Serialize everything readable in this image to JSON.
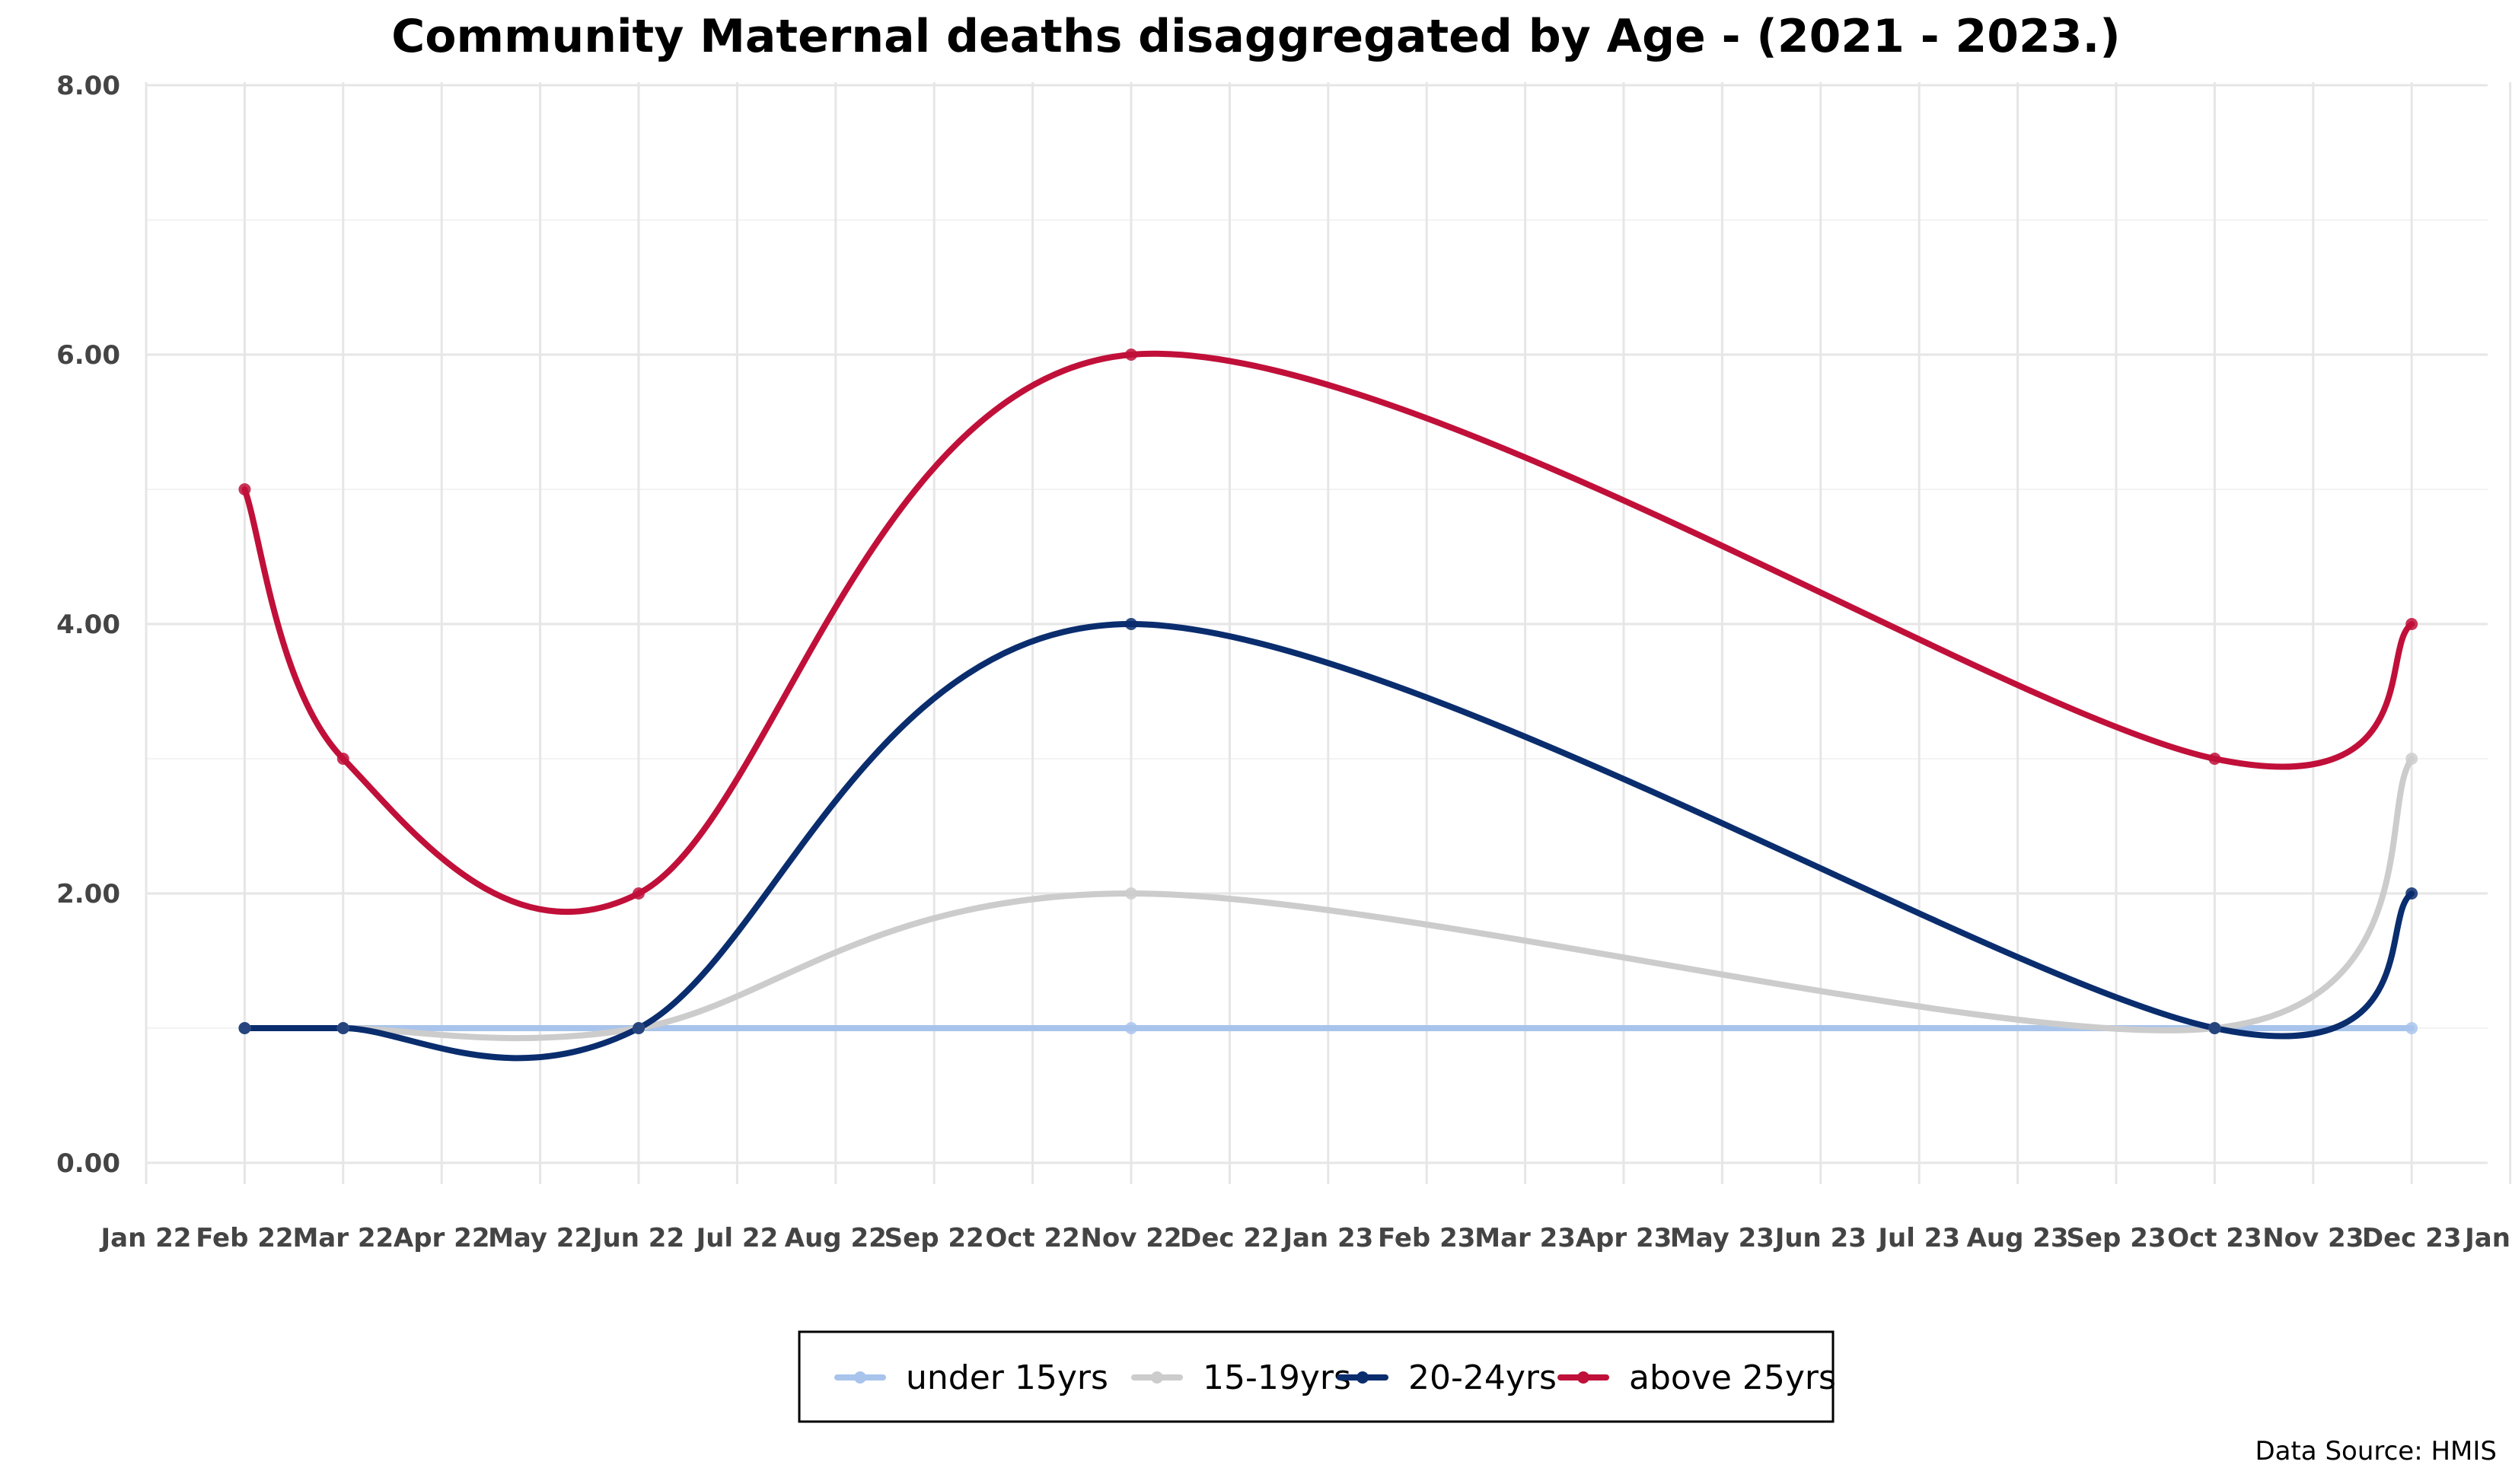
{
  "chart_data": {
    "type": "line",
    "title": "Community Maternal deaths disaggregated by Age - (2021 - 2023.)",
    "xlabel": "",
    "ylabel": "",
    "source": "Data Source: HMIS",
    "ylim": [
      0,
      8
    ],
    "y_ticks": [
      "0.00",
      "2.00",
      "4.00",
      "6.00",
      "8.00"
    ],
    "x_ticks": [
      "Jan 22",
      "Feb 22",
      "Mar 22",
      "Apr 22",
      "May 22",
      "Jun 22",
      "Jul 22",
      "Aug 22",
      "Sep 22",
      "Oct 22",
      "Nov 22",
      "Dec 22",
      "Jan 23",
      "Feb 23",
      "Mar 23",
      "Apr 23",
      "May 23",
      "Jun 23",
      "Jul 23",
      "Aug 23",
      "Sep 23",
      "Oct 23",
      "Nov 23",
      "Dec 23",
      "Jan 24"
    ],
    "x_points": [
      "Feb 22",
      "Mar 22",
      "Jun 22",
      "Nov 22",
      "Oct 23",
      "Dec 23"
    ],
    "grid": true,
    "legend_position": "bottom",
    "series": [
      {
        "name": "under 15yrs",
        "color": "#a8c4ec",
        "values": [
          1,
          1,
          1,
          1,
          1,
          1
        ]
      },
      {
        "name": "15-19yrs",
        "color": "#cccccc",
        "values": [
          1,
          1,
          1,
          2,
          1,
          3
        ]
      },
      {
        "name": "20-24yrs",
        "color": "#0a2d6e",
        "values": [
          1,
          1,
          1,
          4,
          1,
          2
        ]
      },
      {
        "name": "above 25yrs",
        "color": "#c0103a",
        "values": [
          5,
          3,
          2,
          6,
          3,
          4
        ]
      }
    ]
  }
}
